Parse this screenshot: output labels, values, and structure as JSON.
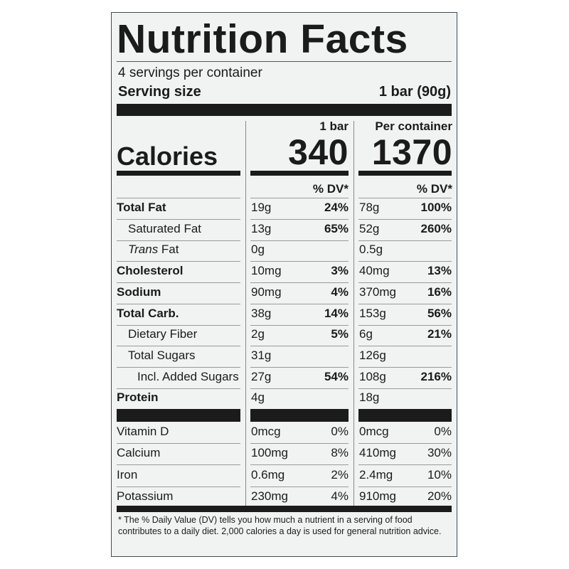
{
  "title": "Nutrition Facts",
  "servings_per_container": "4 servings per container",
  "serving_size_label": "Serving size",
  "serving_size_value": "1 bar (90g)",
  "columns": {
    "col1_header": "1 bar",
    "col2_header": "Per container"
  },
  "calories": {
    "label": "Calories",
    "col1": "340",
    "col2": "1370"
  },
  "dv_header": "% DV*",
  "nutrients": [
    {
      "label": "Total Fat",
      "bold": true,
      "indent": 0,
      "col1_amount": "19g",
      "col1_dv": "24%",
      "col2_amount": "78g",
      "col2_dv": "100%"
    },
    {
      "label": "Saturated Fat",
      "bold": false,
      "indent": 1,
      "col1_amount": "13g",
      "col1_dv": "65%",
      "col2_amount": "52g",
      "col2_dv": "260%"
    },
    {
      "label_italic": "Trans",
      "label": " Fat",
      "bold": false,
      "indent": 1,
      "col1_amount": "0g",
      "col1_dv": "",
      "col2_amount": "0.5g",
      "col2_dv": ""
    },
    {
      "label": "Cholesterol",
      "bold": true,
      "indent": 0,
      "col1_amount": "10mg",
      "col1_dv": "3%",
      "col2_amount": "40mg",
      "col2_dv": "13%"
    },
    {
      "label": "Sodium",
      "bold": true,
      "indent": 0,
      "col1_amount": "90mg",
      "col1_dv": "4%",
      "col2_amount": "370mg",
      "col2_dv": "16%"
    },
    {
      "label": "Total Carb.",
      "bold": true,
      "indent": 0,
      "col1_amount": "38g",
      "col1_dv": "14%",
      "col2_amount": "153g",
      "col2_dv": "56%"
    },
    {
      "label": "Dietary Fiber",
      "bold": false,
      "indent": 1,
      "col1_amount": "2g",
      "col1_dv": "5%",
      "col2_amount": "6g",
      "col2_dv": "21%"
    },
    {
      "label": "Total Sugars",
      "bold": false,
      "indent": 1,
      "col1_amount": "31g",
      "col1_dv": "",
      "col2_amount": "126g",
      "col2_dv": ""
    },
    {
      "label": "Incl. Added Sugars",
      "bold": false,
      "indent": 2,
      "col1_amount": "27g",
      "col1_dv": "54%",
      "col2_amount": "108g",
      "col2_dv": "216%"
    },
    {
      "label": "Protein",
      "bold": true,
      "indent": 0,
      "col1_amount": "4g",
      "col1_dv": "",
      "col2_amount": "18g",
      "col2_dv": ""
    }
  ],
  "vitamins": [
    {
      "label": "Vitamin D",
      "col1_amount": "0mcg",
      "col1_dv": "0%",
      "col2_amount": "0mcg",
      "col2_dv": "0%"
    },
    {
      "label": "Calcium",
      "col1_amount": "100mg",
      "col1_dv": "8%",
      "col2_amount": "410mg",
      "col2_dv": "30%"
    },
    {
      "label": "Iron",
      "col1_amount": "0.6mg",
      "col1_dv": "2%",
      "col2_amount": "2.4mg",
      "col2_dv": "10%"
    },
    {
      "label": "Potassium",
      "col1_amount": "230mg",
      "col1_dv": "4%",
      "col2_amount": "910mg",
      "col2_dv": "20%"
    }
  ],
  "footnote": "* The % Daily Value (DV) tells you how much a nutrient in a serving of food contributes to a daily diet. 2,000 calories a day is used for general nutrition advice."
}
